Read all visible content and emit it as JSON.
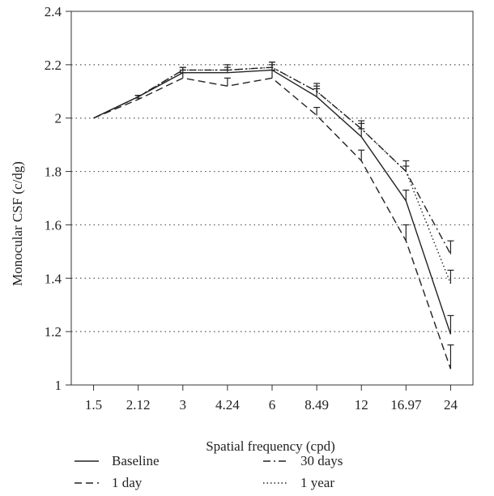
{
  "chart_data": {
    "type": "line",
    "xlabel": "Spatial frequency (cpd)",
    "ylabel": "Monocular CSF (c/dg)",
    "categories": [
      "1.5",
      "2.12",
      "3",
      "4.24",
      "6",
      "8.49",
      "12",
      "16.97",
      "24"
    ],
    "yticks": [
      "1",
      "1.2",
      "1.4",
      "1.6",
      "1.8",
      "2",
      "2.2",
      "2.4"
    ],
    "ylim": [
      1,
      2.4
    ],
    "grid": "horizontal-dotted",
    "legend_position": "bottom",
    "series": [
      {
        "name": "Baseline",
        "style": "solid",
        "values": [
          2.0,
          2.08,
          2.17,
          2.17,
          2.18,
          2.08,
          1.93,
          1.69,
          1.19
        ],
        "error": [
          0.0,
          0.005,
          0.01,
          0.01,
          0.02,
          0.03,
          0.03,
          0.04,
          0.07
        ]
      },
      {
        "name": "1 day",
        "style": "dashed",
        "values": [
          2.0,
          2.07,
          2.15,
          2.12,
          2.15,
          2.01,
          1.84,
          1.54,
          1.06
        ],
        "error": [
          0.0,
          0.005,
          0.02,
          0.03,
          0.03,
          0.03,
          0.04,
          0.06,
          0.09
        ]
      },
      {
        "name": "30 days",
        "style": "dashdot",
        "values": [
          2.0,
          2.08,
          2.18,
          2.18,
          2.19,
          2.1,
          1.96,
          1.8,
          1.49
        ],
        "error": [
          0.0,
          0.005,
          0.01,
          0.01,
          0.02,
          0.03,
          0.03,
          0.04,
          0.05
        ]
      },
      {
        "name": "1 year",
        "style": "dotted",
        "values": [
          2.0,
          2.08,
          2.18,
          2.18,
          2.19,
          2.1,
          1.96,
          1.8,
          1.38
        ],
        "error": [
          0.0,
          0.005,
          0.01,
          0.02,
          0.02,
          0.02,
          0.02,
          0.02,
          0.05
        ]
      }
    ],
    "colors": {
      "line": "#222222",
      "grid": "#555555",
      "axis": "#333333"
    }
  }
}
